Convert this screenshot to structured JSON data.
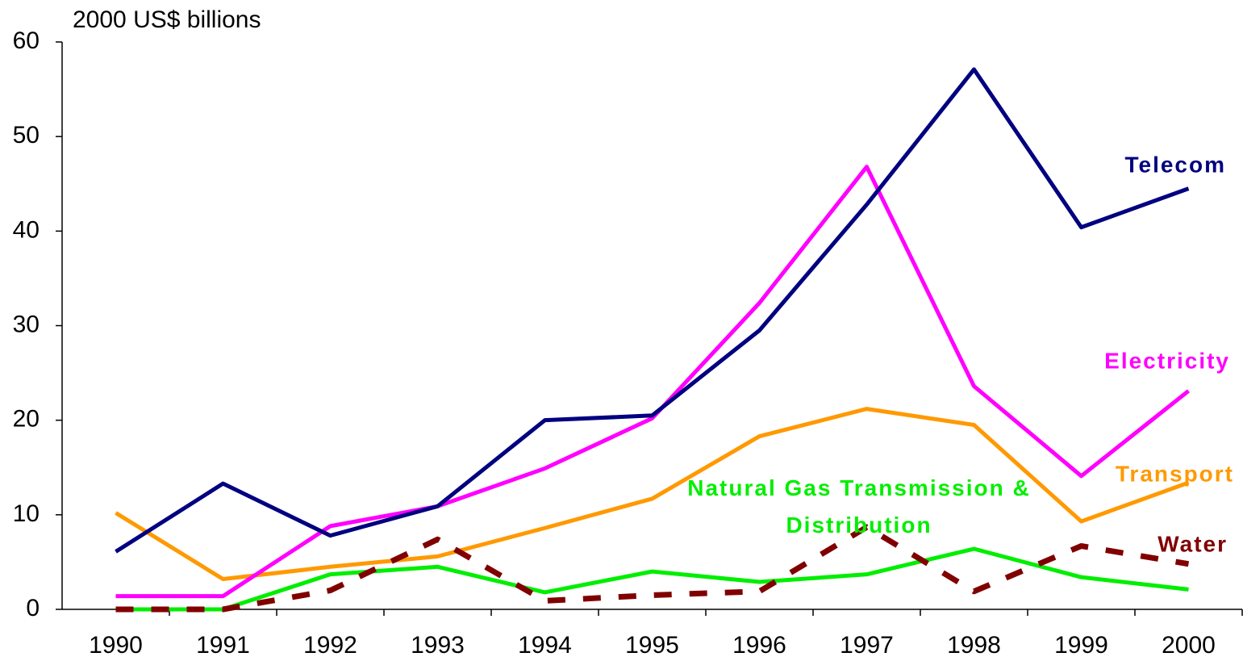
{
  "chart_data": {
    "type": "line",
    "y_axis_label": "2000 US$ billions",
    "categories": [
      "1990",
      "1991",
      "1992",
      "1993",
      "1994",
      "1995",
      "1996",
      "1997",
      "1998",
      "1999",
      "2000"
    ],
    "series": [
      {
        "name": "Telecom",
        "color": "#000080",
        "values": [
          6.1,
          13.3,
          7.8,
          10.9,
          20.0,
          20.5,
          29.5,
          42.8,
          57.1,
          40.4,
          44.5
        ]
      },
      {
        "name": "Electricity",
        "color": "#ff00ff",
        "values": [
          1.4,
          1.4,
          8.8,
          10.9,
          14.9,
          20.2,
          32.4,
          46.8,
          23.6,
          14.1,
          23.1
        ]
      },
      {
        "name": "Transport",
        "color": "#ff9900",
        "values": [
          10.2,
          3.2,
          4.5,
          5.6,
          8.6,
          11.7,
          18.3,
          21.2,
          19.5,
          9.3,
          13.4
        ]
      },
      {
        "name": "Water",
        "color": "#800000",
        "dashed": true,
        "values": [
          0,
          0,
          2.0,
          7.4,
          0.9,
          1.5,
          1.9,
          8.7,
          1.9,
          6.7,
          4.8
        ]
      },
      {
        "name": "Natural Gas Transmission & Distribution",
        "color": "#00ee00",
        "values": [
          0,
          0,
          3.7,
          4.5,
          1.8,
          4.0,
          2.9,
          3.7,
          6.4,
          3.4,
          2.1
        ]
      }
    ],
    "ylim": [
      0,
      60
    ],
    "yticks": [
      0,
      10,
      20,
      30,
      40,
      50,
      60
    ]
  }
}
